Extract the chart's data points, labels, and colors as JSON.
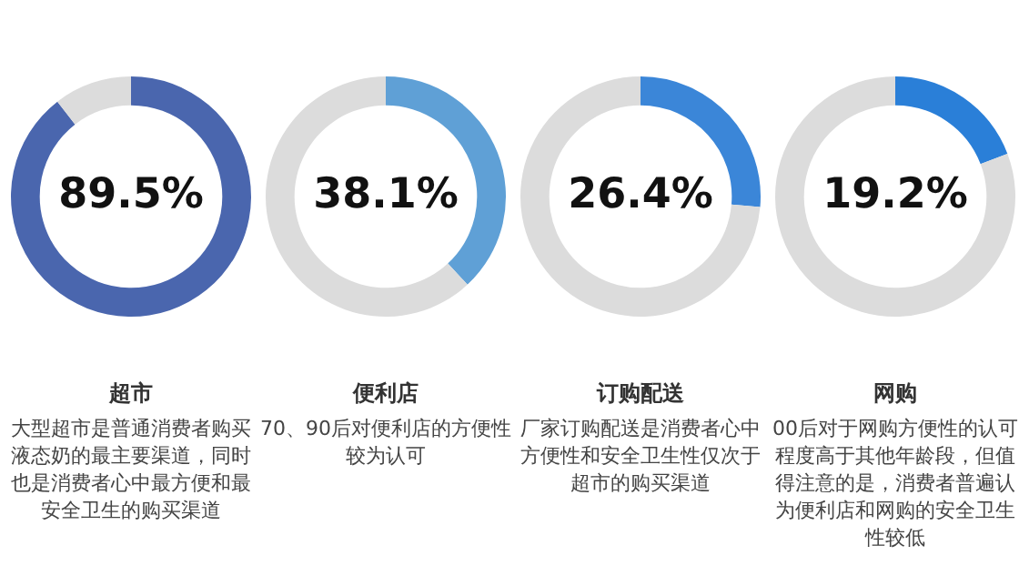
{
  "chart_data": [
    {
      "type": "donut",
      "title": "超市",
      "categories": [
        null,
        null
      ],
      "values": [
        89.5,
        10.5
      ],
      "colors": [
        "#4a66ae",
        "#dcdcdc"
      ],
      "value_labels": [
        "89.5%",
        null
      ],
      "annotations": [
        "大型超市是普通消费者购买液态奶的最主要渠道，同时也是消费者心中最方便和最安全卫生的购买渠道"
      ]
    },
    {
      "type": "donut",
      "title": "便利店",
      "categories": [
        null,
        null
      ],
      "values": [
        38.1,
        61.9
      ],
      "colors": [
        "#5fa0d6",
        "#dcdcdc"
      ],
      "value_labels": [
        "38.1%",
        null
      ],
      "annotations": [
        "70、90后对便利店的方便性较为认可"
      ]
    },
    {
      "type": "donut",
      "title": "订购配送",
      "categories": [
        null,
        null
      ],
      "values": [
        26.4,
        73.6
      ],
      "colors": [
        "#3b86d8",
        "#dcdcdc"
      ],
      "value_labels": [
        "26.4%",
        null
      ],
      "annotations": [
        "厂家订购配送是消费者心中方便性和安全卫生性仅次于超市的购买渠道"
      ]
    },
    {
      "type": "donut",
      "title": "网购",
      "categories": [
        null,
        null
      ],
      "values": [
        19.2,
        80.8
      ],
      "colors": [
        "#2a7fd8",
        "#dcdcdc"
      ],
      "value_labels": [
        "19.2%",
        null
      ],
      "annotations": [
        "00后对于网购方便性的认可程度高于其他年龄段，但值得注意的是，消费者普遍认为便利店和网购的安全卫生性较低"
      ]
    }
  ]
}
